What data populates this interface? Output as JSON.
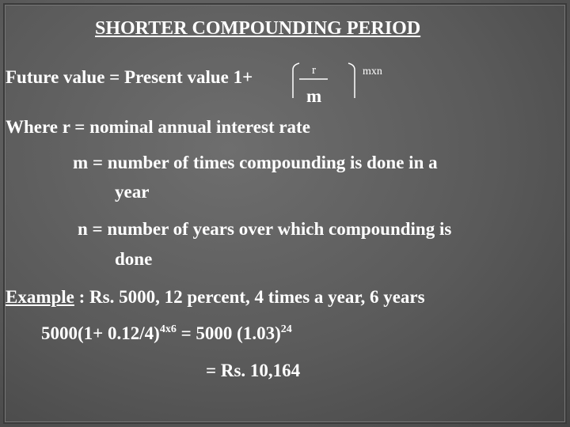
{
  "header": {
    "title": "SHORTER COMPOUNDING PERIOD"
  },
  "formula": {
    "lhs": "Future value = Present value  1+",
    "numerator": "r",
    "denominator": "m",
    "exponent": "mxn"
  },
  "definitions": [
    {
      "line1": "Where r  = nominal annual interest rate"
    },
    {
      "line1": "m = number of times compounding is done in a",
      "line2": "year"
    },
    {
      "line1": "n = number of years over which compounding is",
      "line2": "done"
    }
  ],
  "example": {
    "label": "Example",
    "text": " : Rs. 5000, 12 percent, 4 times a year, 6 years",
    "calc": {
      "part1": "5000(1+ 0.12/4)",
      "exp1": "4x6",
      "part2": " = 5000 (1.03)",
      "exp2": "24"
    },
    "result": "= Rs. 10,164"
  }
}
